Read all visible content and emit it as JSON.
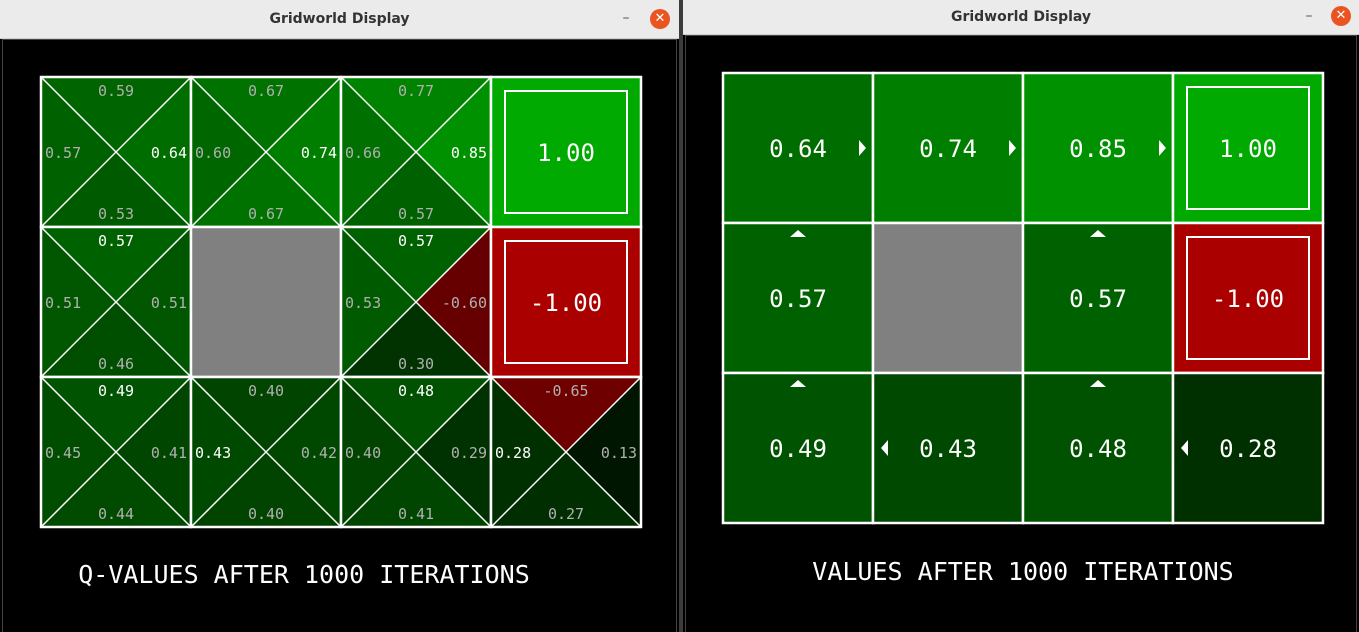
{
  "windows": [
    {
      "title": "Gridworld Display",
      "minimize_label": "–",
      "close_label": "✕",
      "caption": "Q-VALUES AFTER 1000 ITERATIONS"
    },
    {
      "title": "Gridworld Display",
      "minimize_label": "–",
      "close_label": "✕",
      "caption": "VALUES AFTER 1000 ITERATIONS"
    }
  ],
  "qgrid": [
    [
      {
        "type": "q",
        "n": "0.59",
        "e": "0.64",
        "s": "0.53",
        "w": "0.57",
        "best": "e"
      },
      {
        "type": "q",
        "n": "0.67",
        "e": "0.74",
        "s": "0.67",
        "w": "0.60",
        "best": "e"
      },
      {
        "type": "q",
        "n": "0.77",
        "e": "0.85",
        "s": "0.57",
        "w": "0.66",
        "best": "e"
      },
      {
        "type": "terminal",
        "value": "1.00",
        "positive": true
      }
    ],
    [
      {
        "type": "q",
        "n": "0.57",
        "e": "0.51",
        "s": "0.46",
        "w": "0.51",
        "best": "n"
      },
      {
        "type": "wall"
      },
      {
        "type": "q",
        "n": "0.57",
        "e": "-0.60",
        "s": "0.30",
        "w": "0.53",
        "best": "n"
      },
      {
        "type": "terminal",
        "value": "-1.00",
        "positive": false
      }
    ],
    [
      {
        "type": "q",
        "n": "0.49",
        "e": "0.41",
        "s": "0.44",
        "w": "0.45",
        "best": "n"
      },
      {
        "type": "q",
        "n": "0.40",
        "e": "0.42",
        "s": "0.40",
        "w": "0.43",
        "best": "w"
      },
      {
        "type": "q",
        "n": "0.48",
        "e": "0.29",
        "s": "0.41",
        "w": "0.40",
        "best": "n"
      },
      {
        "type": "q",
        "n": "-0.65",
        "e": "0.13",
        "s": "0.27",
        "w": "0.28",
        "best": "w"
      }
    ]
  ],
  "vgrid": [
    [
      {
        "type": "v",
        "value": "0.64",
        "arrow": "e"
      },
      {
        "type": "v",
        "value": "0.74",
        "arrow": "e"
      },
      {
        "type": "v",
        "value": "0.85",
        "arrow": "e"
      },
      {
        "type": "terminal",
        "value": "1.00",
        "positive": true
      }
    ],
    [
      {
        "type": "v",
        "value": "0.57",
        "arrow": "n"
      },
      {
        "type": "wall"
      },
      {
        "type": "v",
        "value": "0.57",
        "arrow": "n"
      },
      {
        "type": "terminal",
        "value": "-1.00",
        "positive": false
      }
    ],
    [
      {
        "type": "v",
        "value": "0.49",
        "arrow": "n"
      },
      {
        "type": "v",
        "value": "0.43",
        "arrow": "w"
      },
      {
        "type": "v",
        "value": "0.48",
        "arrow": "n"
      },
      {
        "type": "v",
        "value": "0.28",
        "arrow": "w"
      }
    ]
  ]
}
